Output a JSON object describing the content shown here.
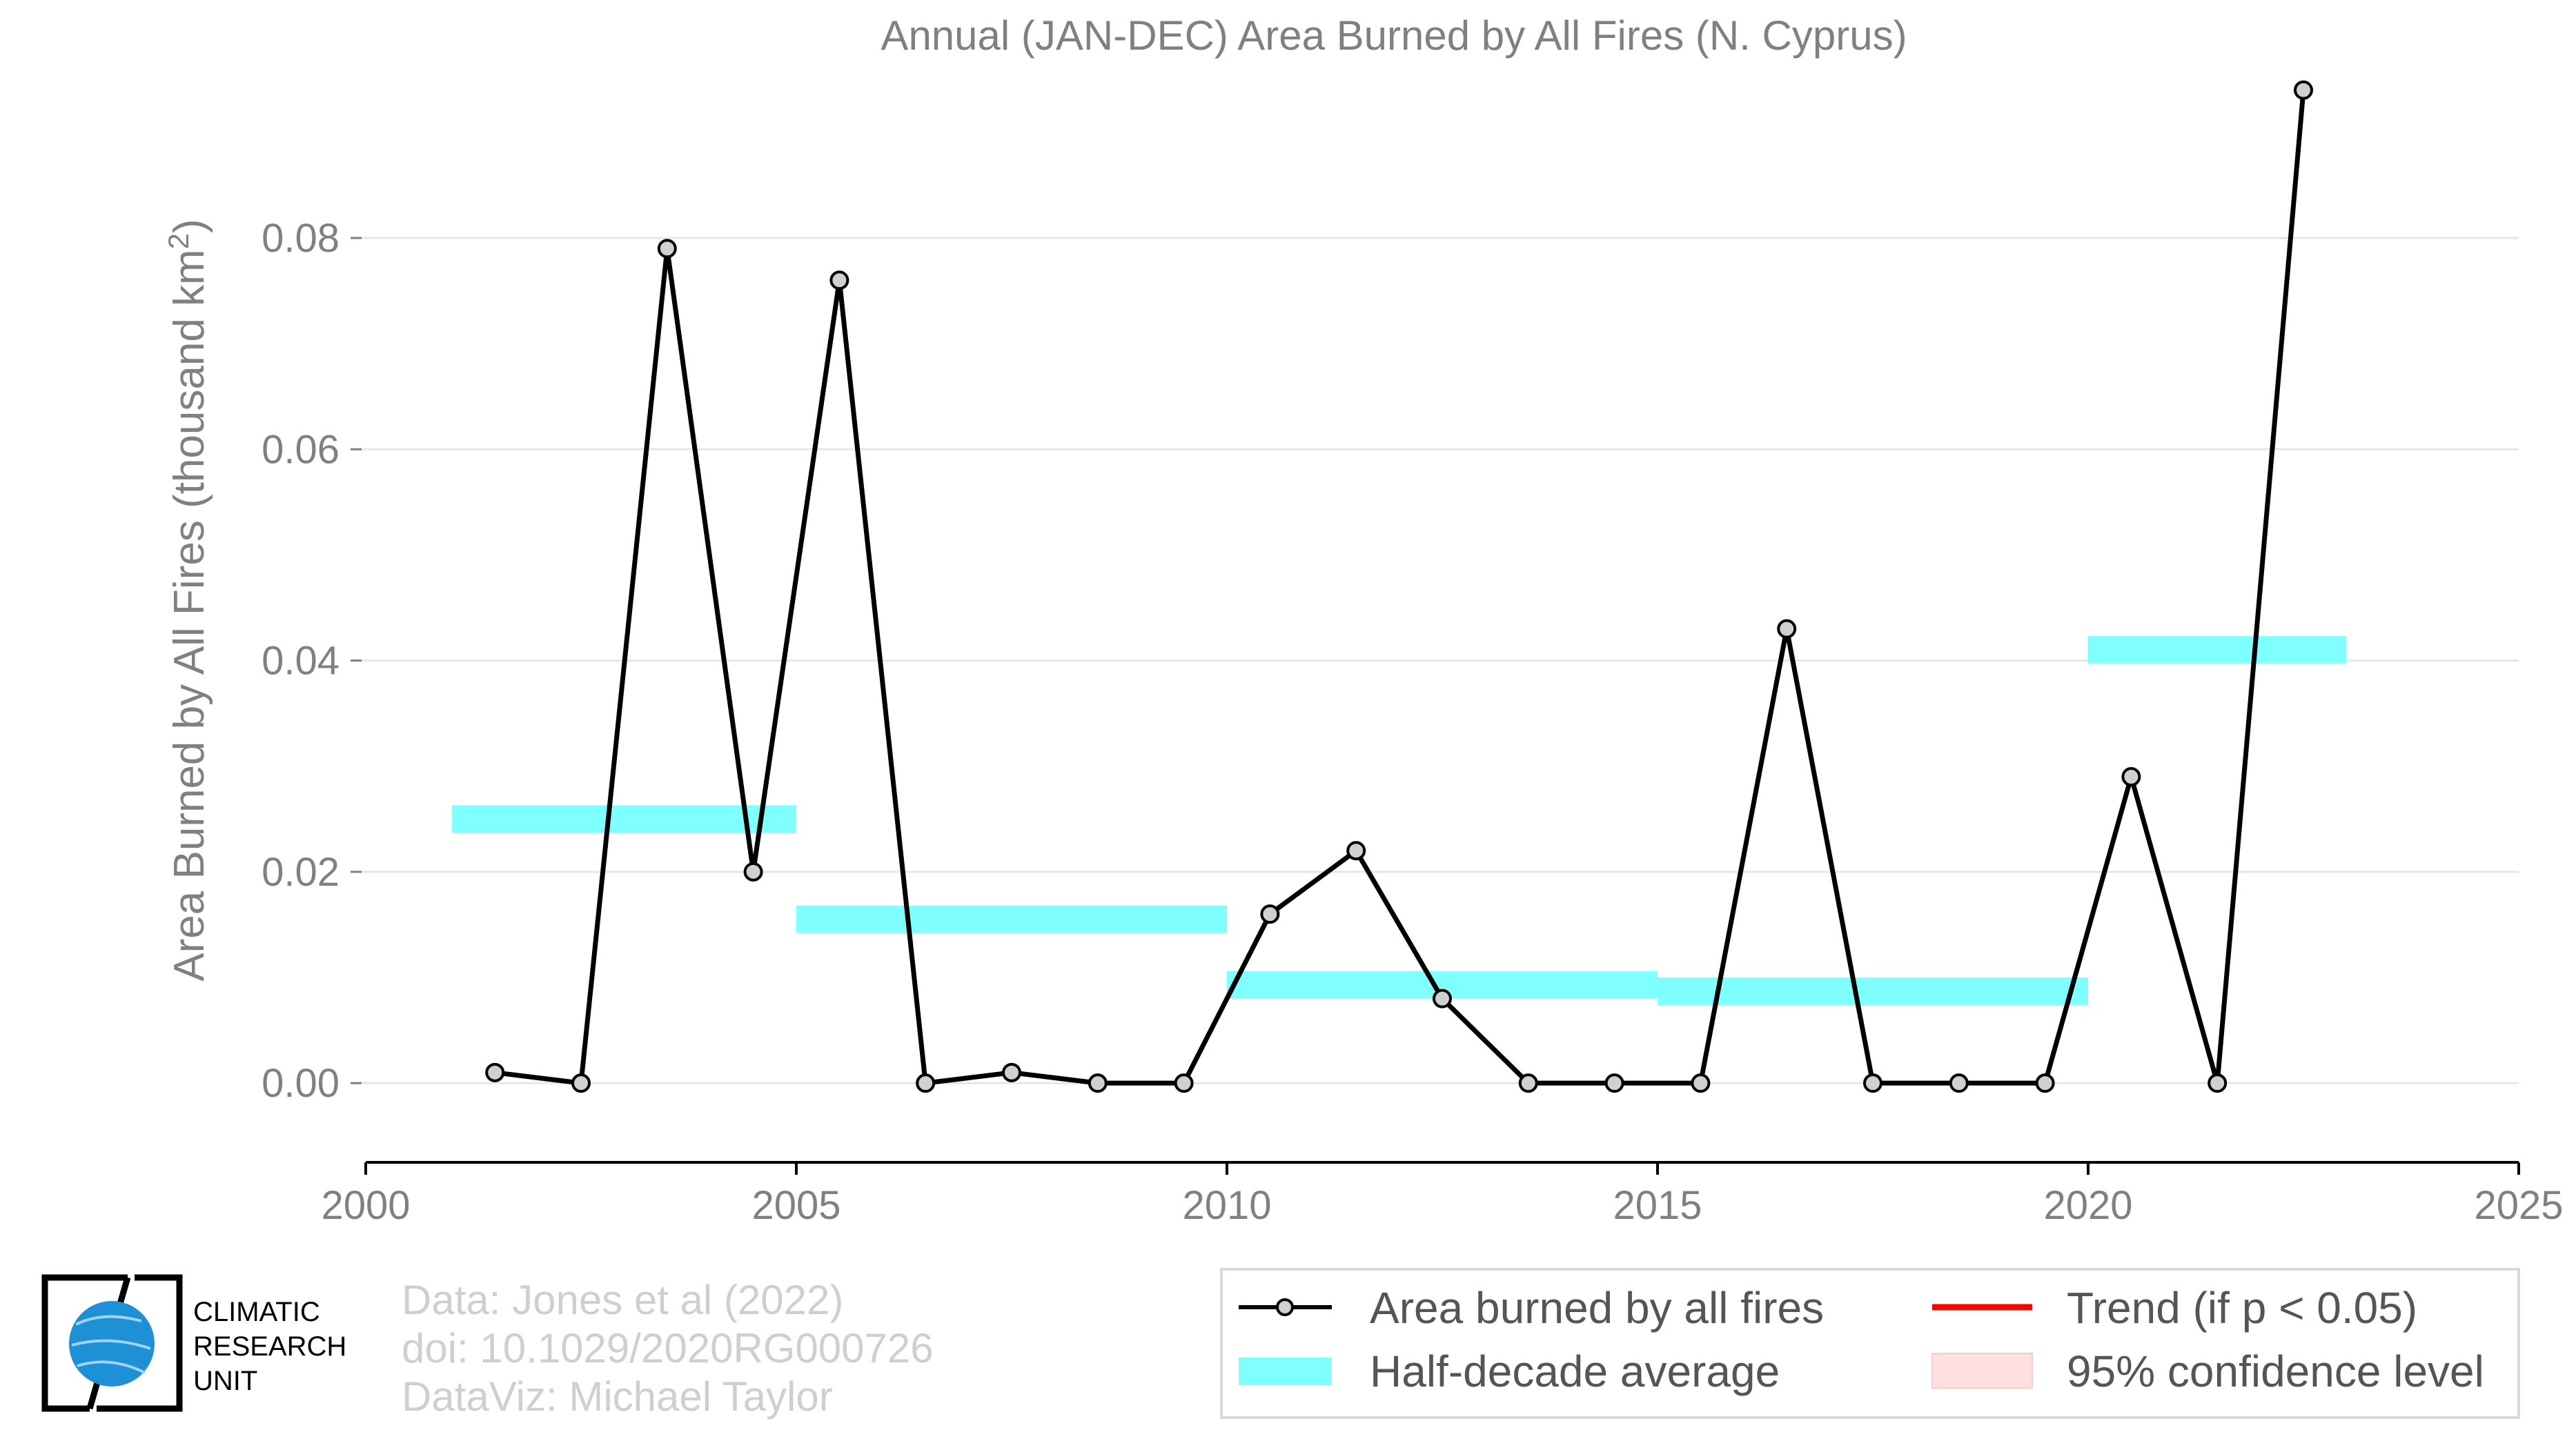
{
  "chart_data": {
    "type": "line",
    "title": "Annual (JAN-DEC) Area Burned by All Fires (N. Cyprus)",
    "ylabel_main": "Area Burned by All Fires (thousand km",
    "ylabel_sup": "2",
    "ylabel_close": ")",
    "xlabel": "",
    "xlim": [
      2000,
      2025
    ],
    "ylim": [
      -0.0075,
      0.096
    ],
    "x_ticks": [
      2000,
      2005,
      2010,
      2015,
      2020,
      2025
    ],
    "x_tick_labels": [
      "2000",
      "2005",
      "2010",
      "2015",
      "2020",
      "2025"
    ],
    "y_ticks": [
      0.0,
      0.02,
      0.04,
      0.06,
      0.08
    ],
    "y_tick_labels": [
      "0.00",
      "0.02",
      "0.04",
      "0.06",
      "0.08"
    ],
    "grid": true,
    "series": [
      {
        "name": "Area burned by all fires",
        "color": "#000000",
        "marker_fill": "#d0d0d0",
        "x": [
          2001.5,
          2002.5,
          2003.5,
          2004.5,
          2005.5,
          2006.5,
          2007.5,
          2008.5,
          2009.5,
          2010.5,
          2011.5,
          2012.5,
          2013.5,
          2014.5,
          2015.5,
          2016.5,
          2017.5,
          2018.5,
          2019.5,
          2020.5,
          2021.5,
          2022.5
        ],
        "y": [
          0.001,
          0.0,
          0.079,
          0.02,
          0.076,
          0.0,
          0.001,
          0.0,
          0.0,
          0.016,
          0.022,
          0.008,
          0.0,
          0.0,
          0.0,
          0.043,
          0.0,
          0.0,
          0.0,
          0.029,
          0.0,
          0.094
        ]
      }
    ],
    "half_decade_average": {
      "name": "Half-decade average",
      "color": "#80ffff",
      "segments": [
        {
          "x0": 2001,
          "x1": 2005,
          "y": 0.025
        },
        {
          "x0": 2005,
          "x1": 2010,
          "y": 0.0155
        },
        {
          "x0": 2010,
          "x1": 2015,
          "y": 0.0093
        },
        {
          "x0": 2015,
          "x1": 2020,
          "y": 0.0087
        },
        {
          "x0": 2020,
          "x1": 2023,
          "y": 0.041
        }
      ]
    },
    "legend": {
      "placement": "bottom-right",
      "entries": [
        {
          "label": "Area burned by all fires",
          "kind": "line-marker",
          "color": "#000000"
        },
        {
          "label": "Trend (if p < 0.05)",
          "kind": "line",
          "color": "#ff0000"
        },
        {
          "label": "Half-decade average",
          "kind": "band",
          "color": "#80ffff"
        },
        {
          "label": "95% confidence level",
          "kind": "patch",
          "color": "#ffe0e0"
        }
      ]
    }
  },
  "credits": {
    "line1": "Data: Jones et al (2022)",
    "line2": "doi: 10.1029/2020RG000726",
    "line3": "DataViz: Michael Taylor"
  },
  "logo": {
    "line1": "CLIMATIC",
    "line2": "RESEARCH",
    "line3": "UNIT",
    "globe_color": "#1e90d6"
  }
}
